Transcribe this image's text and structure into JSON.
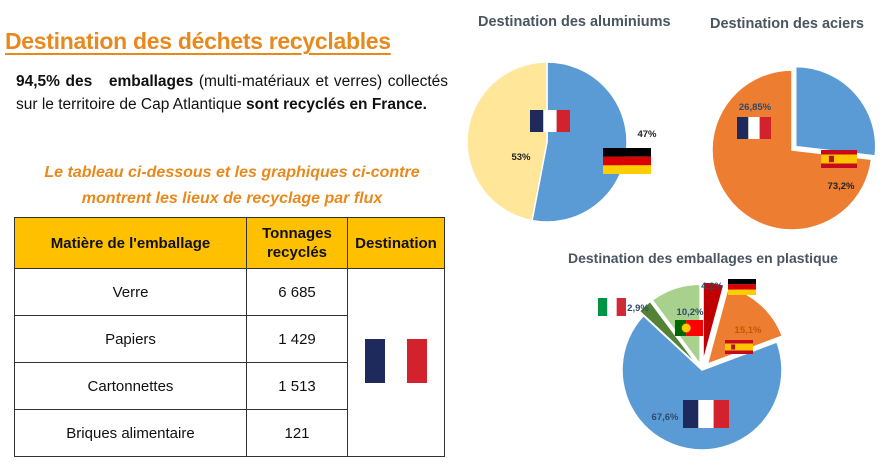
{
  "heading": "Destination des déchets recyclables",
  "intro": {
    "p1": "94,5% des",
    "p2": "emballages",
    "p3": "(multi-matériaux et verres) collectés sur le territoire de Cap Atlantique",
    "p4": "sont recyclés en France."
  },
  "subtitle": "Le tableau ci-dessous et les graphiques ci-contre montrent les lieux de recyclage par flux",
  "table": {
    "headers": [
      "Matière de l'emballage",
      "Tonnages recyclés",
      "Destination"
    ],
    "rows": [
      {
        "material": "Verre",
        "tonnage": "6 685"
      },
      {
        "material": "Papiers",
        "tonnage": "1 429"
      },
      {
        "material": "Cartonnettes",
        "tonnage": "1 513"
      },
      {
        "material": "Briques alimentaire",
        "tonnage": "121"
      }
    ],
    "destination_flag": "france-flag-icon"
  },
  "colors": {
    "accent": "#e8891e",
    "header_fill": "#ffc000",
    "france_blue": "#1f2a5c",
    "france_red": "#d3222d"
  },
  "chart_data": [
    {
      "type": "pie",
      "title": "Destination des aluminiums",
      "slices": [
        {
          "label": "53%",
          "value": 53,
          "flag": "france-flag-icon",
          "color": "#5b9bd5"
        },
        {
          "label": "47%",
          "value": 47,
          "flag": "germany-flag-icon",
          "color": "#ffe699"
        }
      ]
    },
    {
      "type": "pie",
      "title": "Destination des aciers",
      "slices": [
        {
          "label": "26,85%",
          "value": 26.85,
          "flag": "france-flag-icon",
          "color": "#5b9bd5"
        },
        {
          "label": "73,2%",
          "value": 73.2,
          "flag": "spain-flag-icon",
          "color": "#ed7d31"
        }
      ]
    },
    {
      "type": "pie",
      "title": "Destination des emballages en plastique",
      "slices": [
        {
          "label": "4,2%",
          "value": 4.2,
          "flag": "germany-flag-icon",
          "color": "#c00000"
        },
        {
          "label": "15,1%",
          "value": 15.1,
          "flag": "spain-flag-icon",
          "color": "#ed7d31"
        },
        {
          "label": "67,6%",
          "value": 67.6,
          "flag": "france-flag-icon",
          "color": "#5b9bd5"
        },
        {
          "label": "2,9%",
          "value": 2.9,
          "flag": "italy-flag-icon",
          "color": "#548235"
        },
        {
          "label": "10,2%",
          "value": 10.2,
          "flag": "portugal-flag-icon",
          "color": "#a9d18e"
        }
      ]
    }
  ]
}
